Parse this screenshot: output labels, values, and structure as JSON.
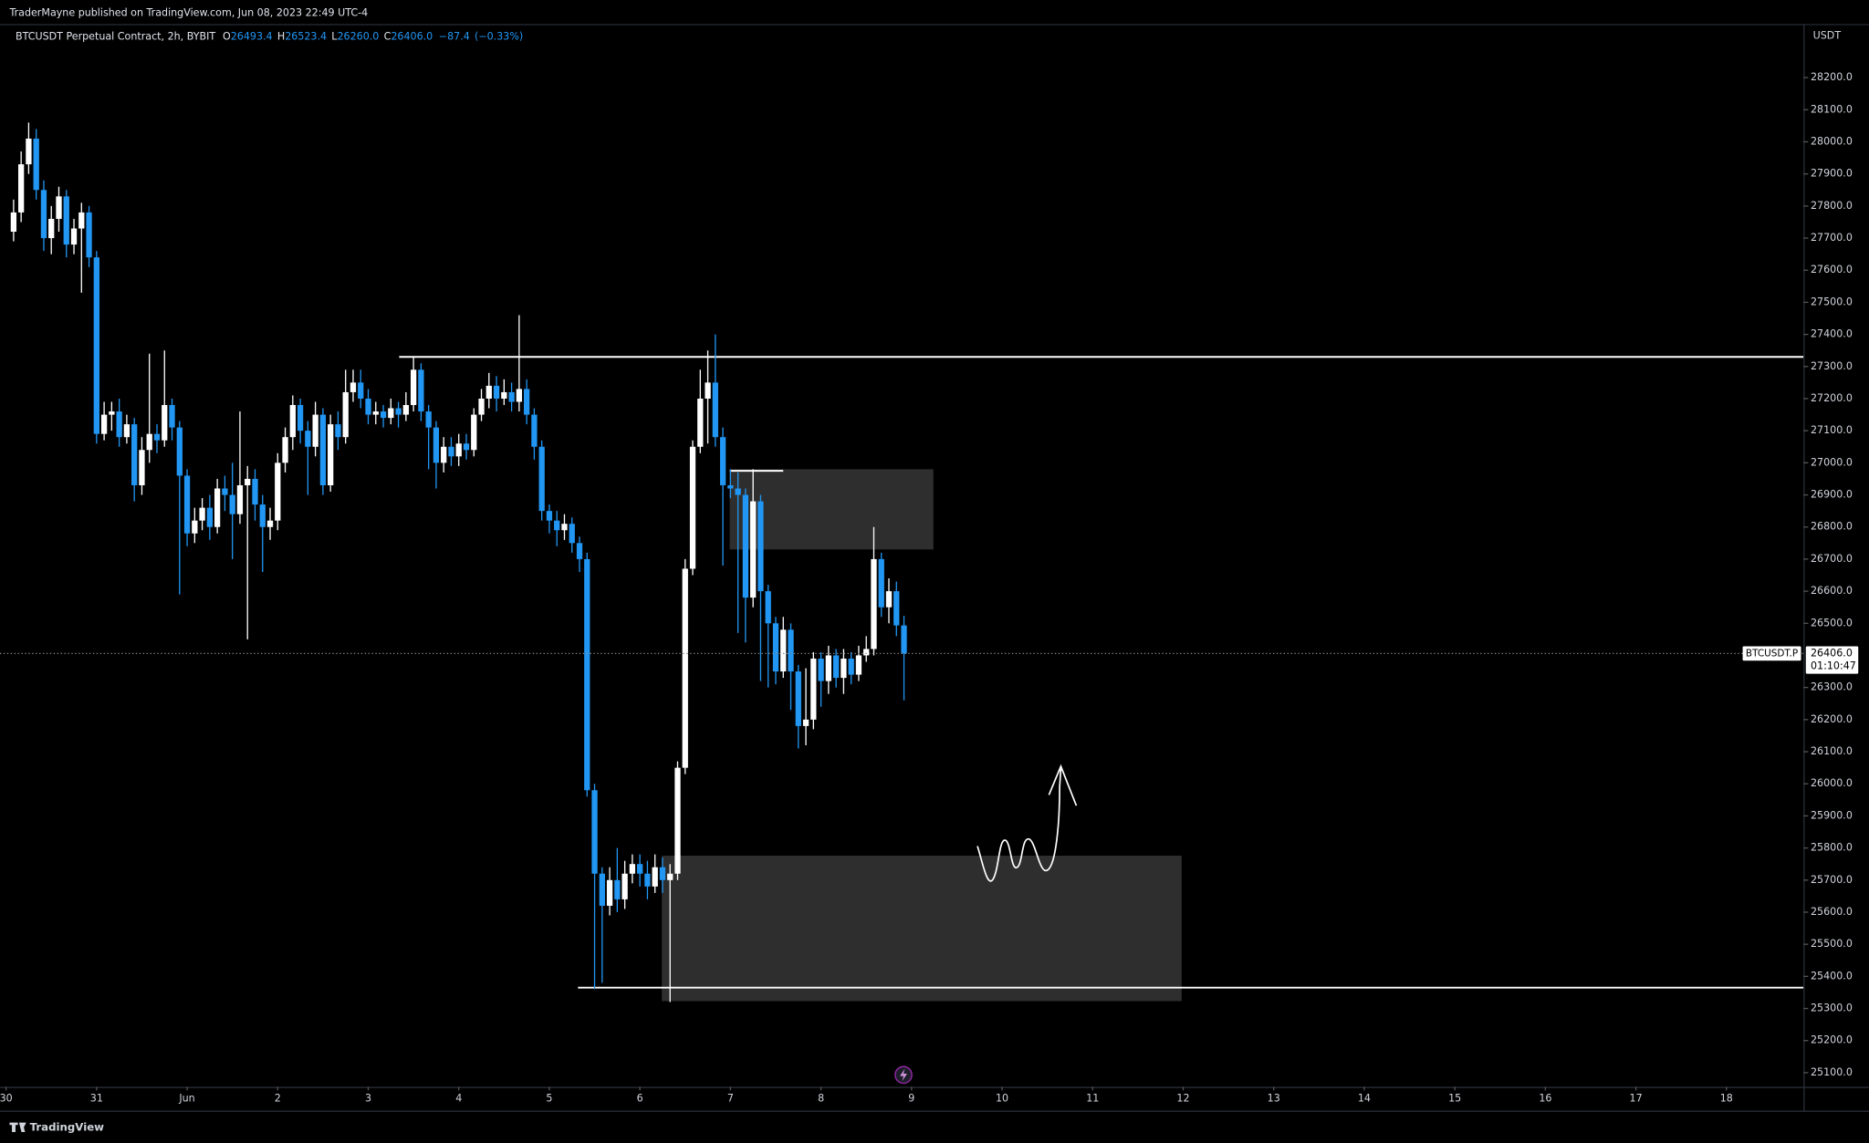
{
  "header": "TraderMayne published on TradingView.com, Jun 08, 2023 22:49 UTC-4",
  "footer": "TradingView",
  "chart_data": {
    "type": "candlestick",
    "title": "BTCUSDT Perpetual Contract, 2h, BYBIT",
    "legend": [
      {
        "k": "O",
        "v": "26493.4"
      },
      {
        "k": "H",
        "v": "26523.4"
      },
      {
        "k": "L",
        "v": "26260.0"
      },
      {
        "k": "C",
        "v": "26406.0"
      }
    ],
    "change": "−87.4",
    "change_percent": "(−0.33%)",
    "currency": "USDT",
    "symbol_tag": "BTCUSDT.P",
    "last_price_label": "26406.0",
    "countdown": "01:10:47",
    "up_color": "#ffffff",
    "down_color": "#2196f3",
    "x": [
      1,
      2,
      3,
      4,
      5,
      6,
      7,
      8,
      9,
      10,
      11,
      12,
      13,
      14,
      15,
      16,
      17,
      18,
      19,
      20,
      21,
      22,
      23,
      24,
      25,
      26,
      27,
      28,
      29,
      30,
      31,
      32,
      33,
      34,
      35,
      36,
      37,
      38,
      39,
      40,
      41,
      42,
      43,
      44,
      45,
      46,
      47,
      48,
      49,
      50,
      51,
      52,
      53,
      54,
      55,
      56,
      57,
      58,
      59,
      60,
      61,
      62,
      63,
      64,
      65,
      66,
      67,
      68,
      69,
      70,
      71,
      72,
      73,
      74,
      75,
      76,
      77,
      78,
      79,
      80,
      81,
      82,
      83,
      84,
      85,
      86,
      87,
      88,
      89,
      90,
      91,
      92,
      93,
      94,
      95,
      96,
      97,
      98,
      99,
      100,
      101,
      102,
      103,
      104,
      105,
      106,
      107,
      108,
      109,
      110,
      111,
      112,
      113,
      114,
      115,
      116,
      117,
      118,
      119
    ],
    "candles": [
      [
        27720,
        27820,
        27690,
        27780
      ],
      [
        27780,
        27970,
        27750,
        27930
      ],
      [
        27930,
        28060,
        27900,
        28010
      ],
      [
        28010,
        28040,
        27820,
        27850
      ],
      [
        27850,
        27880,
        27660,
        27700
      ],
      [
        27700,
        27800,
        27650,
        27760
      ],
      [
        27760,
        27860,
        27720,
        27830
      ],
      [
        27830,
        27850,
        27640,
        27680
      ],
      [
        27680,
        27760,
        27650,
        27730
      ],
      [
        27730,
        27810,
        27530,
        27780
      ],
      [
        27780,
        27800,
        27610,
        27640
      ],
      [
        27640,
        27660,
        27060,
        27090
      ],
      [
        27090,
        27190,
        27070,
        27150
      ],
      [
        27150,
        27190,
        27100,
        27160
      ],
      [
        27160,
        27200,
        27050,
        27080
      ],
      [
        27080,
        27150,
        27060,
        27120
      ],
      [
        27120,
        27140,
        26880,
        26930
      ],
      [
        26930,
        27080,
        26900,
        27040
      ],
      [
        27040,
        27340,
        27000,
        27090
      ],
      [
        27090,
        27120,
        27030,
        27070
      ],
      [
        27070,
        27350,
        27050,
        27180
      ],
      [
        27180,
        27200,
        27070,
        27110
      ],
      [
        27110,
        27130,
        26590,
        26960
      ],
      [
        26960,
        26980,
        26740,
        26780
      ],
      [
        26780,
        26860,
        26750,
        26820
      ],
      [
        26820,
        26890,
        26790,
        26860
      ],
      [
        26860,
        26900,
        26760,
        26800
      ],
      [
        26800,
        26950,
        26780,
        26920
      ],
      [
        26920,
        26960,
        26850,
        26900
      ],
      [
        26900,
        27000,
        26700,
        26840
      ],
      [
        26840,
        27160,
        26810,
        26930
      ],
      [
        26930,
        26990,
        26450,
        26950
      ],
      [
        26950,
        26980,
        26820,
        26870
      ],
      [
        26870,
        26900,
        26660,
        26800
      ],
      [
        26800,
        26860,
        26760,
        26820
      ],
      [
        26820,
        27030,
        26790,
        27000
      ],
      [
        27000,
        27110,
        26970,
        27080
      ],
      [
        27080,
        27210,
        27040,
        27180
      ],
      [
        27180,
        27200,
        27060,
        27100
      ],
      [
        27100,
        27130,
        26900,
        27050
      ],
      [
        27050,
        27190,
        27020,
        27150
      ],
      [
        27150,
        27170,
        26900,
        26930
      ],
      [
        26930,
        27150,
        26910,
        27120
      ],
      [
        27120,
        27160,
        27040,
        27080
      ],
      [
        27080,
        27290,
        27060,
        27220
      ],
      [
        27220,
        27290,
        27190,
        27250
      ],
      [
        27250,
        27290,
        27170,
        27200
      ],
      [
        27200,
        27230,
        27120,
        27150
      ],
      [
        27150,
        27190,
        27120,
        27160
      ],
      [
        27160,
        27180,
        27110,
        27140
      ],
      [
        27140,
        27200,
        27120,
        27170
      ],
      [
        27170,
        27190,
        27110,
        27150
      ],
      [
        27150,
        27220,
        27130,
        27180
      ],
      [
        27180,
        27330,
        27160,
        27290
      ],
      [
        27290,
        27310,
        27130,
        27160
      ],
      [
        27160,
        27180,
        26980,
        27110
      ],
      [
        27110,
        27130,
        26920,
        27000
      ],
      [
        27000,
        27080,
        26970,
        27050
      ],
      [
        27050,
        27080,
        26990,
        27020
      ],
      [
        27020,
        27090,
        26990,
        27060
      ],
      [
        27060,
        27090,
        27010,
        27040
      ],
      [
        27040,
        27170,
        27020,
        27150
      ],
      [
        27150,
        27230,
        27130,
        27200
      ],
      [
        27200,
        27280,
        27170,
        27240
      ],
      [
        27240,
        27270,
        27160,
        27200
      ],
      [
        27200,
        27260,
        27180,
        27220
      ],
      [
        27220,
        27250,
        27160,
        27190
      ],
      [
        27190,
        27460,
        27160,
        27230
      ],
      [
        27230,
        27260,
        27120,
        27150
      ],
      [
        27150,
        27170,
        27010,
        27050
      ],
      [
        27050,
        27070,
        26820,
        26850
      ],
      [
        26850,
        26870,
        26780,
        26820
      ],
      [
        26820,
        26850,
        26740,
        26790
      ],
      [
        26790,
        26840,
        26760,
        26810
      ],
      [
        26810,
        26830,
        26720,
        26750
      ],
      [
        26750,
        26770,
        26660,
        26700
      ],
      [
        26700,
        26720,
        25960,
        25980
      ],
      [
        25980,
        26000,
        25360,
        25720
      ],
      [
        25720,
        25740,
        25380,
        25620
      ],
      [
        25620,
        25740,
        25590,
        25700
      ],
      [
        25700,
        25800,
        25600,
        25640
      ],
      [
        25640,
        25760,
        25610,
        25720
      ],
      [
        25720,
        25780,
        25690,
        25750
      ],
      [
        25750,
        25780,
        25680,
        25720
      ],
      [
        25720,
        25760,
        25640,
        25680
      ],
      [
        25680,
        25780,
        25660,
        25740
      ],
      [
        25740,
        25770,
        25660,
        25700
      ],
      [
        25700,
        25750,
        25320,
        25720
      ],
      [
        25720,
        26070,
        25700,
        26050
      ],
      [
        26050,
        26700,
        26030,
        26670
      ],
      [
        26670,
        27070,
        26650,
        27050
      ],
      [
        27050,
        27290,
        27030,
        27200
      ],
      [
        27200,
        27350,
        27060,
        27250
      ],
      [
        27250,
        27400,
        27050,
        27080
      ],
      [
        27080,
        27110,
        26680,
        26930
      ],
      [
        26930,
        26980,
        26890,
        26920
      ],
      [
        26920,
        26970,
        26470,
        26900
      ],
      [
        26900,
        26920,
        26440,
        26580
      ],
      [
        26580,
        26980,
        26550,
        26880
      ],
      [
        26880,
        26900,
        26320,
        26600
      ],
      [
        26600,
        26620,
        26300,
        26500
      ],
      [
        26500,
        26520,
        26310,
        26350
      ],
      [
        26350,
        26520,
        26330,
        26480
      ],
      [
        26480,
        26500,
        26230,
        26350
      ],
      [
        26350,
        26370,
        26110,
        26180
      ],
      [
        26180,
        26360,
        26120,
        26200
      ],
      [
        26200,
        26410,
        26170,
        26390
      ],
      [
        26390,
        26410,
        26240,
        26320
      ],
      [
        26320,
        26430,
        26280,
        26400
      ],
      [
        26400,
        26420,
        26300,
        26330
      ],
      [
        26330,
        26420,
        26280,
        26390
      ],
      [
        26390,
        26410,
        26310,
        26340
      ],
      [
        26340,
        26430,
        26320,
        26400
      ],
      [
        26400,
        26460,
        26380,
        26420
      ],
      [
        26420,
        26800,
        26400,
        26700
      ],
      [
        26700,
        26720,
        26520,
        26550
      ],
      [
        26550,
        26640,
        26500,
        26600
      ],
      [
        26600,
        26630,
        26460,
        26493.4
      ],
      [
        26493.4,
        26523.4,
        26260.0,
        26406.0
      ]
    ],
    "xlim": [
      -0.8,
      238.2
    ],
    "xticks": [
      {
        "value": 0,
        "label": "30"
      },
      {
        "value": 12,
        "label": "31"
      },
      {
        "value": 24,
        "label": "Jun"
      },
      {
        "value": 36,
        "label": "2"
      },
      {
        "value": 48,
        "label": "3"
      },
      {
        "value": 60,
        "label": "4"
      },
      {
        "value": 72,
        "label": "5"
      },
      {
        "value": 84,
        "label": "6"
      },
      {
        "value": 96,
        "label": "7"
      },
      {
        "value": 108,
        "label": "8"
      },
      {
        "value": 120,
        "label": "9"
      },
      {
        "value": 132,
        "label": "10"
      },
      {
        "value": 144,
        "label": "11"
      },
      {
        "value": 156,
        "label": "12"
      },
      {
        "value": 168,
        "label": "13"
      },
      {
        "value": 180,
        "label": "14"
      },
      {
        "value": 192,
        "label": "15"
      },
      {
        "value": 204,
        "label": "16"
      },
      {
        "value": 216,
        "label": "17"
      },
      {
        "value": 228,
        "label": "18"
      }
    ],
    "ylim": [
      25056,
      28367
    ],
    "yticks": [
      {
        "value": 25100,
        "label": "25100.0"
      },
      {
        "value": 25200,
        "label": "25200.0"
      },
      {
        "value": 25300,
        "label": "25300.0"
      },
      {
        "value": 25400,
        "label": "25400.0"
      },
      {
        "value": 25500,
        "label": "25500.0"
      },
      {
        "value": 25600,
        "label": "25600.0"
      },
      {
        "value": 25700,
        "label": "25700.0"
      },
      {
        "value": 25800,
        "label": "25800.0"
      },
      {
        "value": 25900,
        "label": "25900.0"
      },
      {
        "value": 26000,
        "label": "26000.0"
      },
      {
        "value": 26100,
        "label": "26100.0"
      },
      {
        "value": 26200,
        "label": "26200.0"
      },
      {
        "value": 26300,
        "label": "26300.0"
      },
      {
        "value": 26500,
        "label": "26500.0"
      },
      {
        "value": 26600,
        "label": "26600.0"
      },
      {
        "value": 26700,
        "label": "26700.0"
      },
      {
        "value": 26800,
        "label": "26800.0"
      },
      {
        "value": 26900,
        "label": "26900.0"
      },
      {
        "value": 27000,
        "label": "27000.0"
      },
      {
        "value": 27100,
        "label": "27100.0"
      },
      {
        "value": 27200,
        "label": "27200.0"
      },
      {
        "value": 27300,
        "label": "27300.0"
      },
      {
        "value": 27400,
        "label": "27400.0"
      },
      {
        "value": 27500,
        "label": "27500.0"
      },
      {
        "value": 27600,
        "label": "27600.0"
      },
      {
        "value": 27700,
        "label": "27700.0"
      },
      {
        "value": 27800,
        "label": "27800.0"
      },
      {
        "value": 27900,
        "label": "27900.0"
      },
      {
        "value": 28000,
        "label": "28000.0"
      },
      {
        "value": 28100,
        "label": "28100.0"
      },
      {
        "value": 28200,
        "label": "28200.0"
      }
    ],
    "grid": false,
    "lines": [
      {
        "price": 27330,
        "from": 52.1
      },
      {
        "price": 25365,
        "from": 75.8
      },
      {
        "price": 26975,
        "from": 95.9,
        "to": 103
      }
    ],
    "boxes": [
      {
        "top": 26980,
        "bottom": 26730,
        "from": 95.9,
        "to": 122.9,
        "color": "#2e2e2e"
      },
      {
        "top": 25776,
        "bottom": 25323,
        "from": 86.9,
        "to": 155.8,
        "color": "#2e2e2e"
      }
    ]
  }
}
